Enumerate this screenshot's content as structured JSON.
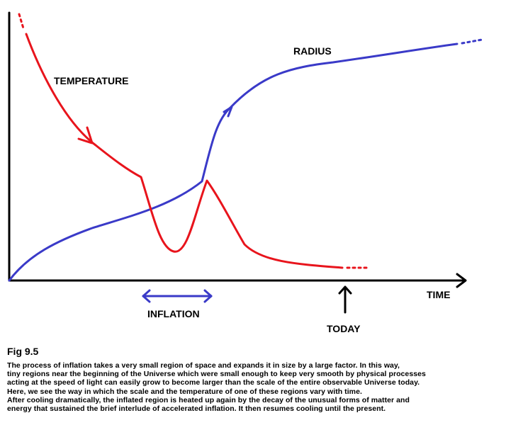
{
  "diagram": {
    "labels": {
      "temperature": "TEMPERATURE",
      "radius": "RADIUS",
      "time": "TIME",
      "inflation": "INFLATION",
      "today": "TODAY"
    },
    "colors": {
      "temperature": "#e8141c",
      "radius": "#3a3ac8",
      "axes": "#000000"
    }
  },
  "caption": {
    "title": "Fig  9.5",
    "lines": [
      "The process of inflation takes a very small region of space and expands it in size by a large factor.  In this way,",
      "tiny regions near the beginning of the Universe which were small enough to keep very smooth by physical processes",
      "acting at the speed of light can easily grow to become larger than the scale of the entire observable Universe today.",
      "Here, we see the way in which the scale and the temperature of one of these regions vary with time.",
      "After cooling dramatically, the inflated region is heated up again by the decay of the unusual forms of matter and",
      "energy that sustained the brief interlude of accelerated inflation. It then resumes cooling until the present."
    ]
  }
}
